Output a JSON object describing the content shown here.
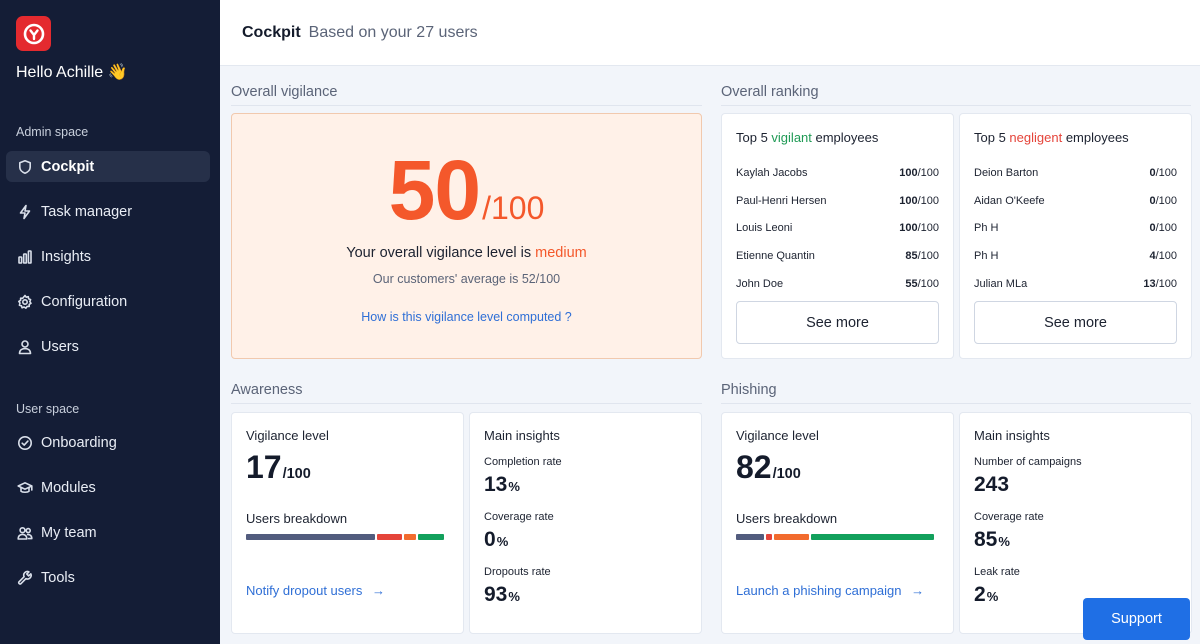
{
  "sidebar": {
    "greeting": "Hello Achille 👋",
    "admin_label": "Admin space",
    "user_label": "User space",
    "admin_items": [
      {
        "label": "Cockpit",
        "icon": "shield-icon",
        "active": true
      },
      {
        "label": "Task manager",
        "icon": "bolt-icon"
      },
      {
        "label": "Insights",
        "icon": "bar-chart-icon"
      },
      {
        "label": "Configuration",
        "icon": "gear-icon"
      },
      {
        "label": "Users",
        "icon": "user-icon"
      }
    ],
    "user_items": [
      {
        "label": "Onboarding",
        "icon": "check-circle-icon"
      },
      {
        "label": "Modules",
        "icon": "graduation-cap-icon"
      },
      {
        "label": "My team",
        "icon": "team-icon"
      },
      {
        "label": "Tools",
        "icon": "wrench-icon"
      }
    ]
  },
  "header": {
    "title": "Cockpit",
    "subtitle": "Based on your 27 users"
  },
  "vigilance": {
    "section_title": "Overall vigilance",
    "score": "50",
    "denominator": "/100",
    "level_prefix": "Your overall vigilance level is ",
    "level": "medium",
    "average": "Our customers' average is 52/100",
    "link": "How is this vigilance level computed ?",
    "accent_color": "#f4582b"
  },
  "ranking": {
    "section_title": "Overall ranking",
    "vigilant": {
      "title_prefix": "Top 5 ",
      "title_word": "vigilant",
      "title_suffix": " employees",
      "rows": [
        {
          "name": "Kaylah Jacobs",
          "score": "100",
          "max": "/100"
        },
        {
          "name": "Paul-Henri Hersen",
          "score": "100",
          "max": "/100"
        },
        {
          "name": "Louis Leoni",
          "score": "100",
          "max": "/100"
        },
        {
          "name": "Etienne Quantin",
          "score": "85",
          "max": "/100"
        },
        {
          "name": "John Doe",
          "score": "55",
          "max": "/100"
        }
      ],
      "button": "See more"
    },
    "negligent": {
      "title_prefix": "Top 5 ",
      "title_word": "negligent",
      "title_suffix": " employees",
      "rows": [
        {
          "name": "Deion Barton",
          "score": "0",
          "max": "/100"
        },
        {
          "name": "Aidan O'Keefe",
          "score": "0",
          "max": "/100"
        },
        {
          "name": "Ph H",
          "score": "0",
          "max": "/100"
        },
        {
          "name": "Ph H",
          "score": "4",
          "max": "/100"
        },
        {
          "name": "Julian MLa",
          "score": "13",
          "max": "/100"
        }
      ],
      "button": "See more"
    }
  },
  "awareness": {
    "section_title": "Awareness",
    "vigilance_label": "Vigilance level",
    "score": "17",
    "denominator": "/100",
    "breakdown_label": "Users breakdown",
    "breakdown": [
      {
        "share": 0.65,
        "color": "#525c7e"
      },
      {
        "share": 0.13,
        "color": "#e5443a"
      },
      {
        "share": 0.06,
        "color": "#f26b2e"
      },
      {
        "share": 0.13,
        "color": "#12a05c"
      }
    ],
    "link": "Notify dropout users",
    "insights_title": "Main insights",
    "insights": [
      {
        "label": "Completion rate",
        "value": "13",
        "unit": "%"
      },
      {
        "label": "Coverage rate",
        "value": "0",
        "unit": "%"
      },
      {
        "label": "Dropouts rate",
        "value": "93",
        "unit": "%"
      }
    ]
  },
  "phishing": {
    "section_title": "Phishing",
    "vigilance_label": "Vigilance level",
    "score": "82",
    "denominator": "/100",
    "breakdown_label": "Users breakdown",
    "breakdown": [
      {
        "share": 0.14,
        "color": "#525c7e"
      },
      {
        "share": 0.03,
        "color": "#e5443a"
      },
      {
        "share": 0.18,
        "color": "#f26b2e"
      },
      {
        "share": 0.62,
        "color": "#12a05c"
      }
    ],
    "link": "Launch a phishing campaign",
    "insights_title": "Main insights",
    "insights": [
      {
        "label": "Number of campaigns",
        "value": "243",
        "unit": ""
      },
      {
        "label": "Coverage rate",
        "value": "85",
        "unit": "%"
      },
      {
        "label": "Leak rate",
        "value": "2",
        "unit": "%"
      }
    ]
  },
  "support_button": "Support"
}
